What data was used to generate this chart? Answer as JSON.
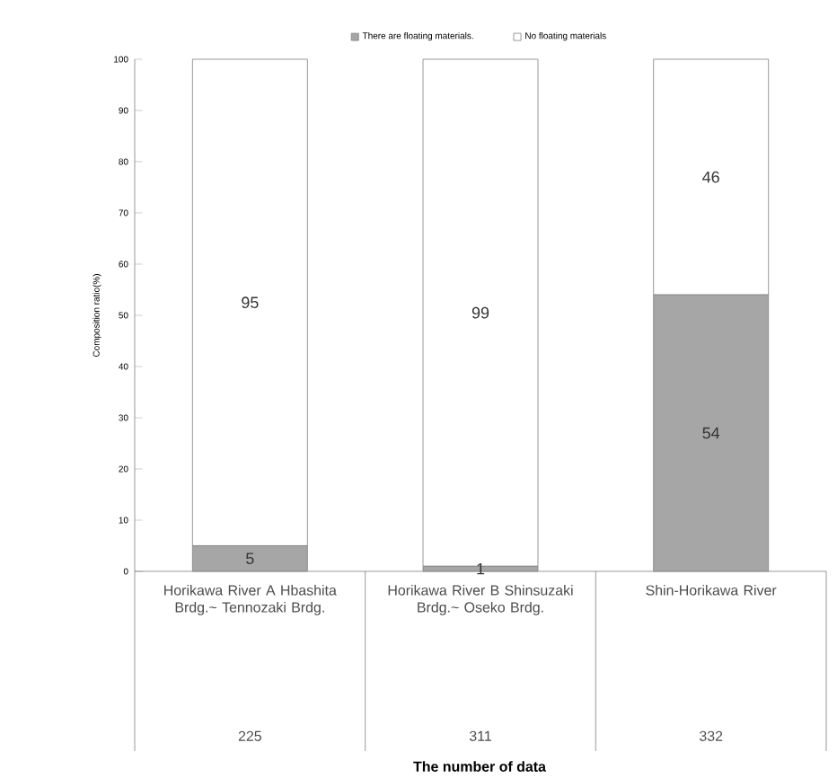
{
  "chart_data": {
    "type": "bar",
    "stacked": true,
    "ylabel": "Composition ratio(%)",
    "categories": [
      "Horikawa River A Hbashita Brdg.~ Tennozaki Brdg.",
      "Horikawa River B Shinsuzaki Brdg.~ Oseko Brdg.",
      "Shin-Horikawa River"
    ],
    "series": [
      {
        "name": "There are floating materials.",
        "color": "#a6a6a6",
        "values": [
          5,
          1,
          54
        ]
      },
      {
        "name": "No floating materials",
        "color": "#ffffff",
        "values": [
          95,
          99,
          46
        ]
      }
    ],
    "data_labels": true,
    "legend": "top",
    "ylim": [
      0,
      100
    ],
    "yticks": [
      0,
      10,
      20,
      30,
      40,
      50,
      60,
      70,
      80,
      90,
      100
    ],
    "annotations": [
      "225",
      "311",
      "332",
      "The number of data"
    ]
  }
}
